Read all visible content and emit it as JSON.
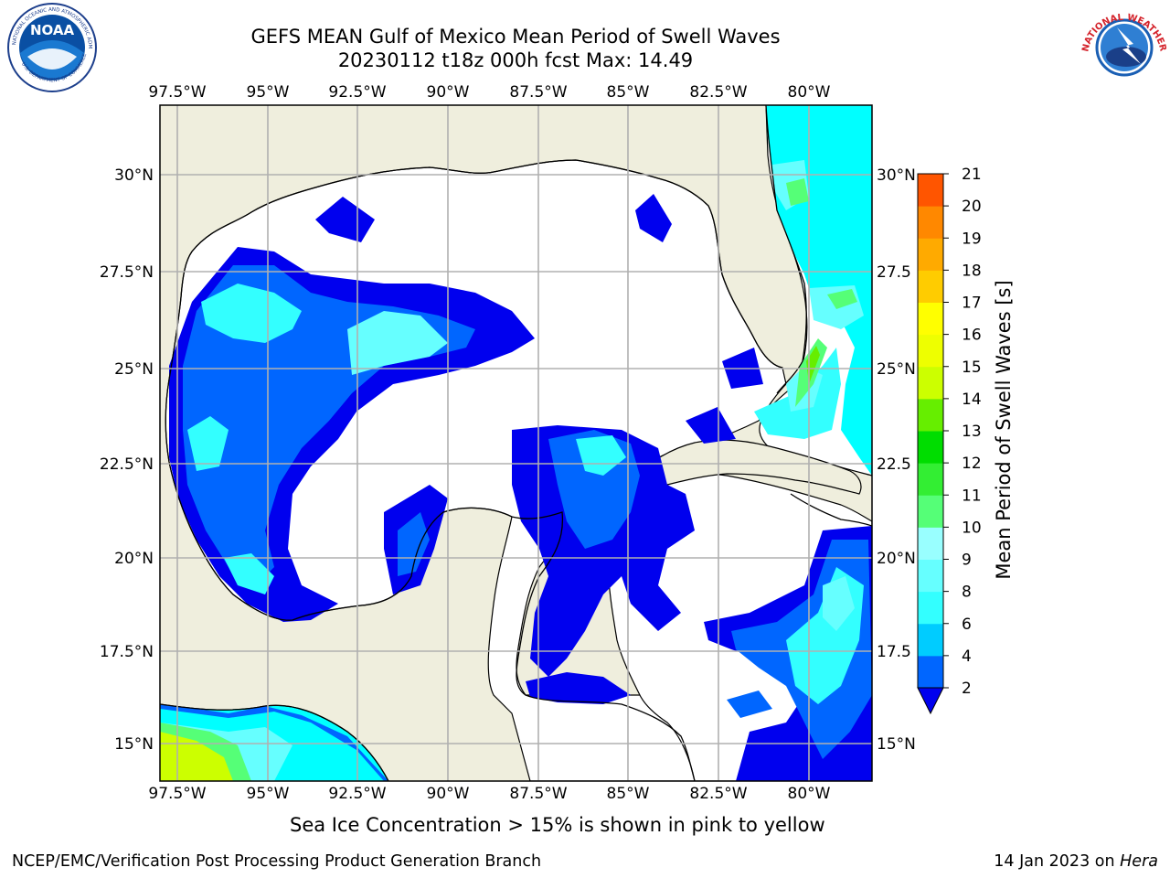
{
  "title": {
    "line1": "GEFS MEAN Gulf of Mexico Mean Period of Swell Waves",
    "line2": "20230112 t18z 000h fcst   Max: 14.49"
  },
  "map": {
    "lon_labels": [
      "97.5°W",
      "95°W",
      "92.5°W",
      "90°W",
      "87.5°W",
      "85°W",
      "82.5°W",
      "80°W"
    ],
    "lat_labels_left": [
      "30°N",
      "27.5°N",
      "25°N",
      "22.5°N",
      "20°N",
      "17.5°N",
      "15°N"
    ],
    "lat_labels_right": [
      "30°N",
      "27.5",
      "25°N",
      "22.5",
      "20°N",
      "17.5",
      "15°N"
    ],
    "land_color": "#efeedd",
    "ocean_color": "#ffffff"
  },
  "colorbar": {
    "label": "Mean Period of Swell Waves [s]",
    "ticks": [
      "2",
      "4",
      "6",
      "8",
      "9",
      "10",
      "11",
      "12",
      "13",
      "14",
      "15",
      "16",
      "17",
      "18",
      "19",
      "20",
      "21"
    ],
    "colors": [
      "#0066ff",
      "#00ccff",
      "#33ffff",
      "#66ffff",
      "#99ffff",
      "#55ff77",
      "#33ee33",
      "#00dd00",
      "#66ee00",
      "#ccff00",
      "#eeff00",
      "#ffff00",
      "#ffcc00",
      "#ffaa00",
      "#ff8800",
      "#ff5500",
      "#ff2200",
      "#ff0000"
    ],
    "extend_color": "#0000ee"
  },
  "caption": "Sea Ice Concentration > 15% is shown in pink to yellow",
  "footer": {
    "left": "NCEP/EMC/Verification Post Processing Product Generation Branch",
    "right_prefix": "14 Jan 2023 on ",
    "right_host": "Hera"
  },
  "logos": {
    "noaa_text": "NOAA",
    "noaa_ring_top": "NATIONAL OCEANIC AND ATMOSPHERIC ADMINISTRATION",
    "noaa_ring_bottom": "U.S. DEPARTMENT OF COMMERCE",
    "nws_ring": "NATIONAL WEATHER SERVICE"
  }
}
